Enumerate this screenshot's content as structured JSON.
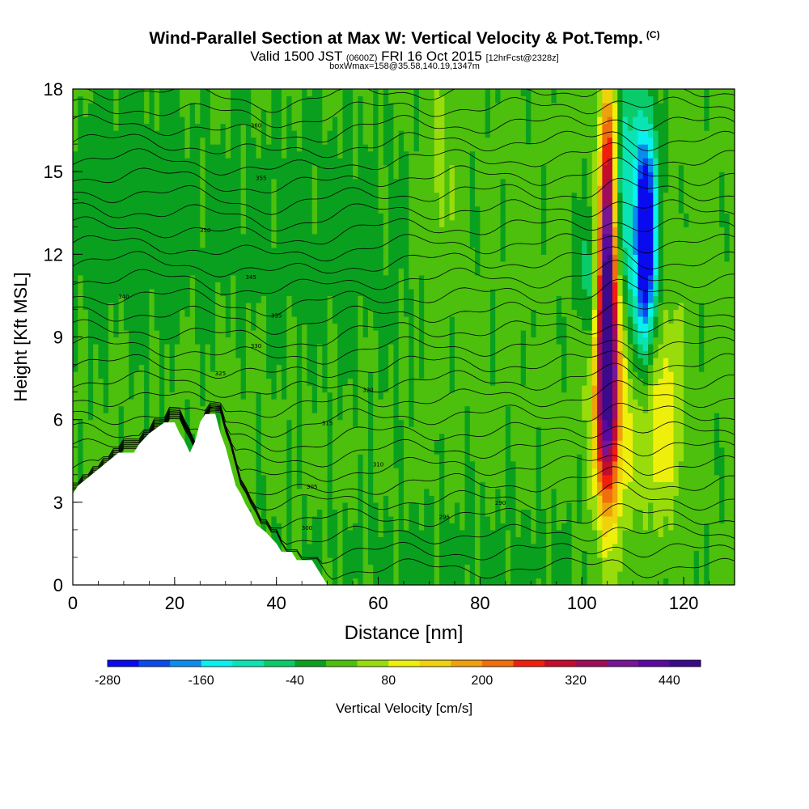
{
  "title": {
    "main": "Wind-Parallel Section at Max W: Vertical Velocity & Pot.Temp.",
    "copyright": "(C)",
    "valid_prefix": "Valid 1500 JST",
    "valid_z": "(0600Z)",
    "valid_date": "FRI 16 Oct 2015",
    "valid_fcst": "[12hrFcst@2328z]",
    "box": "boxWmax=158@35.58,140.19,1347m"
  },
  "chart_data": {
    "type": "heatmap",
    "xlabel": "Distance [nm]",
    "ylabel": "Height [Kft MSL]",
    "xlim": [
      0,
      130
    ],
    "ylim": [
      0,
      18
    ],
    "x_ticks": [
      0,
      20,
      40,
      60,
      80,
      100,
      120
    ],
    "y_ticks": [
      0,
      3,
      6,
      9,
      12,
      15,
      18
    ],
    "colorbar": {
      "label": "Vertical Velocity [cm/s]",
      "min": -280,
      "max": 480,
      "step": 40,
      "tick_labels": [
        -280,
        -160,
        -40,
        80,
        200,
        320,
        440
      ],
      "colors": [
        "#0a0aef",
        "#0a4bef",
        "#0a8cef",
        "#0aeff0",
        "#0ae4b5",
        "#0acb6a",
        "#0aa01f",
        "#4cc00c",
        "#98dc0c",
        "#eef00c",
        "#f0d20c",
        "#f0a00c",
        "#f06e0c",
        "#f01e0c",
        "#c40c2c",
        "#a00c5c",
        "#781496",
        "#5a0aa0",
        "#3c0a8c"
      ],
      "value_order": "ascending from -280"
    },
    "terrain": [
      [
        0,
        3.3
      ],
      [
        1,
        3.6
      ],
      [
        3,
        3.9
      ],
      [
        5,
        4.2
      ],
      [
        7,
        4.5
      ],
      [
        9,
        4.8
      ],
      [
        12,
        4.8
      ],
      [
        13,
        5.1
      ],
      [
        15,
        5.5
      ],
      [
        18,
        5.9
      ],
      [
        20,
        5.9
      ],
      [
        21,
        5.5
      ],
      [
        22,
        5.2
      ],
      [
        23,
        4.8
      ],
      [
        24,
        5.2
      ],
      [
        25,
        5.9
      ],
      [
        26,
        6.2
      ],
      [
        28,
        6.2
      ],
      [
        29,
        5.5
      ],
      [
        30,
        5.0
      ],
      [
        31,
        4.3
      ],
      [
        32,
        3.6
      ],
      [
        33,
        3.3
      ],
      [
        34,
        2.9
      ],
      [
        35,
        2.6
      ],
      [
        36,
        2.2
      ],
      [
        38,
        1.9
      ],
      [
        40,
        1.5
      ],
      [
        41,
        1.2
      ],
      [
        43,
        1.2
      ],
      [
        44,
        0.9
      ],
      [
        47,
        0.9
      ],
      [
        48,
        0.6
      ],
      [
        49,
        0.3
      ],
      [
        50,
        0.0
      ]
    ],
    "updraft_cores": [
      {
        "x": 105,
        "z_min": 2.5,
        "z_max": 18,
        "w_max": 440
      },
      {
        "x": 113,
        "z_min": 3.0,
        "z_max": 11.5,
        "w_max": 120
      }
    ],
    "downdraft_cores": [
      {
        "x": 112.5,
        "z_min": 9.0,
        "z_max": 16.5,
        "w_min": -280
      },
      {
        "x": 108,
        "z_min": 10.0,
        "z_max": 17.5,
        "w_min": -120
      }
    ],
    "isentrope_labels": [
      "360",
      "355",
      "350",
      "345",
      "340",
      "335",
      "330",
      "325",
      "320",
      "315",
      "310",
      "305",
      "300",
      "295",
      "290"
    ],
    "isentrope_count": 29
  }
}
